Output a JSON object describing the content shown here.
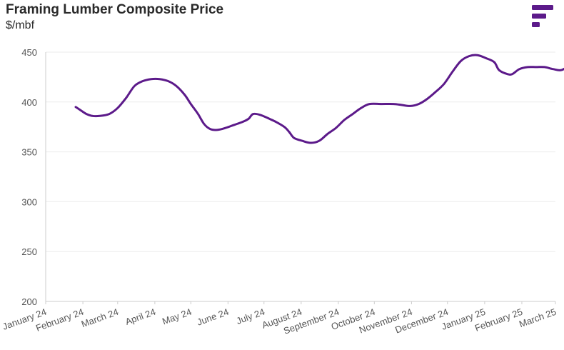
{
  "colors": {
    "line": "#5c1a8a",
    "brand": "#5c1a8a",
    "grid": "#ebebeb",
    "axis": "#cccccc",
    "text": "#555555"
  },
  "logo": {
    "icon": "bar-chart-logo-icon",
    "bars": [
      1.0,
      0.68,
      0.36
    ]
  },
  "chart_data": {
    "type": "line",
    "title": "Framing Lumber Composite Price",
    "subtitle": "$/mbf",
    "xlabel": "",
    "ylabel": "",
    "ylim": [
      200,
      450
    ],
    "yticks": [
      "200",
      "250",
      "300",
      "350",
      "400",
      "450"
    ],
    "xticks": [
      "January 24",
      "February 24",
      "March 24",
      "April 24",
      "May 24",
      "June 24",
      "July 24",
      "August 24",
      "September 24",
      "October 24",
      "November 24",
      "December 24",
      "January 25",
      "February 25",
      "March 25"
    ],
    "xrange": [
      "2024-01-01",
      "2025-03-01"
    ],
    "grid": true,
    "legend": "none",
    "series": [
      {
        "points": [
          [
            "2024-01-26",
            395
          ],
          [
            "2024-01-31",
            391
          ],
          [
            "2024-02-04",
            388
          ],
          [
            "2024-02-09",
            386
          ],
          [
            "2024-02-15",
            386
          ],
          [
            "2024-02-23",
            388
          ],
          [
            "2024-03-01",
            394
          ],
          [
            "2024-03-08",
            404
          ],
          [
            "2024-03-15",
            416
          ],
          [
            "2024-03-22",
            421
          ],
          [
            "2024-03-29",
            423
          ],
          [
            "2024-04-05",
            423
          ],
          [
            "2024-04-12",
            421
          ],
          [
            "2024-04-19",
            416
          ],
          [
            "2024-04-26",
            407
          ],
          [
            "2024-05-01",
            398
          ],
          [
            "2024-05-07",
            388
          ],
          [
            "2024-05-12",
            378
          ],
          [
            "2024-05-17",
            373
          ],
          [
            "2024-05-23",
            372
          ],
          [
            "2024-05-30",
            374
          ],
          [
            "2024-06-06",
            377
          ],
          [
            "2024-06-13",
            380
          ],
          [
            "2024-06-18",
            383
          ],
          [
            "2024-06-22",
            388
          ],
          [
            "2024-06-28",
            387
          ],
          [
            "2024-07-04",
            384
          ],
          [
            "2024-07-11",
            380
          ],
          [
            "2024-07-18",
            375
          ],
          [
            "2024-07-22",
            370
          ],
          [
            "2024-07-26",
            364
          ],
          [
            "2024-08-02",
            361
          ],
          [
            "2024-08-09",
            359
          ],
          [
            "2024-08-16",
            361
          ],
          [
            "2024-08-23",
            368
          ],
          [
            "2024-08-30",
            374
          ],
          [
            "2024-09-06",
            382
          ],
          [
            "2024-09-13",
            388
          ],
          [
            "2024-09-20",
            394
          ],
          [
            "2024-09-27",
            398
          ],
          [
            "2024-10-07",
            398
          ],
          [
            "2024-10-17",
            398
          ],
          [
            "2024-10-24",
            397
          ],
          [
            "2024-10-31",
            396
          ],
          [
            "2024-11-07",
            398
          ],
          [
            "2024-11-14",
            403
          ],
          [
            "2024-11-21",
            410
          ],
          [
            "2024-11-28",
            418
          ],
          [
            "2024-12-05",
            430
          ],
          [
            "2024-12-12",
            441
          ],
          [
            "2024-12-19",
            446
          ],
          [
            "2024-12-26",
            447
          ],
          [
            "2025-01-02",
            444
          ],
          [
            "2025-01-09",
            440
          ],
          [
            "2025-01-13",
            432
          ],
          [
            "2025-01-20",
            428
          ],
          [
            "2025-01-24",
            428
          ],
          [
            "2025-01-30",
            433
          ],
          [
            "2025-02-06",
            435
          ],
          [
            "2025-02-13",
            435
          ],
          [
            "2025-02-20",
            435
          ],
          [
            "2025-02-27",
            433
          ],
          [
            "2025-03-06",
            432
          ],
          [
            "2025-03-13",
            437
          ]
        ]
      }
    ]
  }
}
